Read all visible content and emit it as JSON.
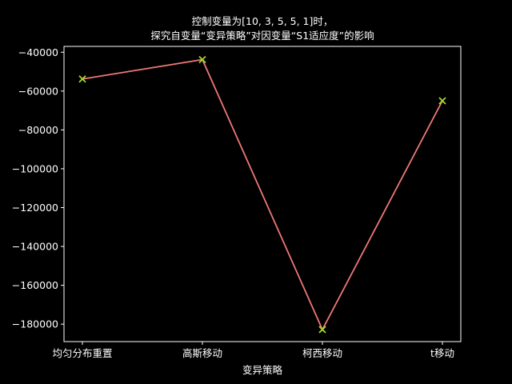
{
  "chart_data": {
    "type": "line",
    "title_line1": "控制变量为[10, 3, 5, 5, 1]时，",
    "title_line2": "探究自变量“变异策略”对因变量“S1适应度”的影响",
    "xlabel": "变异策略",
    "ylabel": "",
    "categories": [
      "均匀分布重置",
      "高斯移动",
      "柯西移动",
      "t移动"
    ],
    "series": [
      {
        "values": [
          -53800,
          -43800,
          -182800,
          -65000
        ]
      }
    ],
    "ylim": [
      -189000,
      -37000
    ],
    "yticks": [
      -40000,
      -60000,
      -80000,
      -100000,
      -120000,
      -140000,
      -160000,
      -180000
    ],
    "ytick_labels": [
      "−40000",
      "−60000",
      "−80000",
      "−100000",
      "−120000",
      "−140000",
      "−160000",
      "−180000"
    ],
    "grid": false,
    "line_color": "#f07878",
    "marker_color": "#a6d92a",
    "marker": "x",
    "background": "#000000",
    "axis_color": "#ffffff"
  }
}
